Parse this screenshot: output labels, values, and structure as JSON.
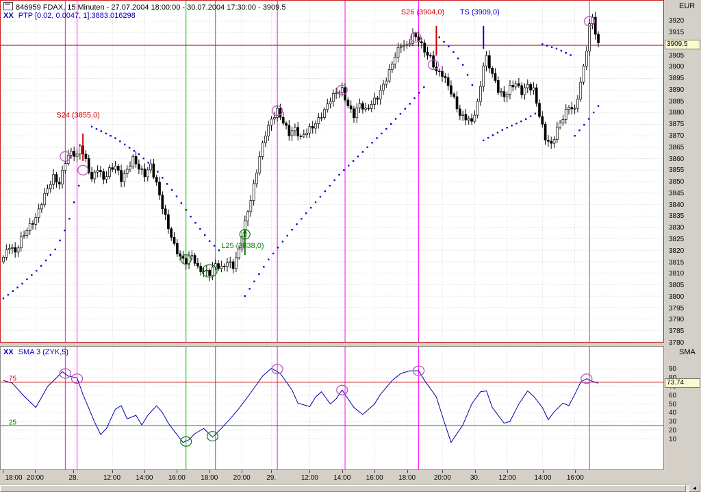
{
  "window": {
    "title": "846959  FDAX, 15 Minuten - 27.07.2004 18:00:00 - 30.07.2004 17:30:00 - 3909.5"
  },
  "main_panel": {
    "indicator_prefix": "XX",
    "indicator_label": "PTP [0.02, 0.0047, 1]:3883.016298",
    "axis_title": "EUR",
    "current_price": "3909.5"
  },
  "lower_panel": {
    "indicator_prefix": "XX",
    "indicator_label": "SMA 3 (ZYK,5)",
    "axis_title": "SMA",
    "current_value": "73.74"
  },
  "scrollbar": {
    "arrow_glyph": "◄"
  },
  "colors": {
    "background": "#d4d0c8",
    "panel_bg": "#ffffff",
    "grid": "#c6c6c6",
    "border_main": "#cc2222",
    "candle": "#000000",
    "sar": "#0000cc",
    "vline_magenta": "#ff00ff",
    "vline_green": "#00b400",
    "circle_magenta": "#bb55bb",
    "circle_green": "#1e7d1e",
    "current_line": "#ff0000",
    "ref_upper": "#cc0000",
    "ref_lower": "#008000",
    "osc_line": "#0000aa",
    "highlight_bg": "#fbfbcf",
    "label_blue": "#0000cc"
  },
  "time_axis": {
    "ticks": [
      {
        "slot": 0,
        "label": "18:00"
      },
      {
        "slot": 11,
        "label": "20:00"
      },
      {
        "slot": 24,
        "label": "28."
      },
      {
        "slot": 37,
        "label": "12:00"
      },
      {
        "slot": 48,
        "label": "14:00"
      },
      {
        "slot": 59,
        "label": "16:00"
      },
      {
        "slot": 70,
        "label": "18:00"
      },
      {
        "slot": 81,
        "label": "20:00"
      },
      {
        "slot": 91,
        "label": "29."
      },
      {
        "slot": 104,
        "label": "12:00"
      },
      {
        "slot": 115,
        "label": "14:00"
      },
      {
        "slot": 126,
        "label": "16:00"
      },
      {
        "slot": 137,
        "label": "18:00"
      },
      {
        "slot": 149,
        "label": "20:00"
      },
      {
        "slot": 160,
        "label": "30."
      },
      {
        "slot": 171,
        "label": "12:00"
      },
      {
        "slot": 183,
        "label": "14:00"
      },
      {
        "slot": 194,
        "label": "16:00"
      }
    ]
  },
  "chart_data": [
    {
      "type": "candlestick",
      "title": "846959 FDAX, 15 Minuten",
      "range": "27.07.2004 18:00:00 - 30.07.2004 17:30:00",
      "last": 3909.5,
      "ylim": [
        3780,
        3929
      ],
      "y_tick_min": 3780,
      "y_tick_max": 3920,
      "y_tick_step": 5,
      "n_slots": 225,
      "last_slot": 202,
      "first_open": 3815,
      "close_anchors": [
        [
          0,
          3817
        ],
        [
          2,
          3822
        ],
        [
          4,
          3819
        ],
        [
          6,
          3825
        ],
        [
          8,
          3829
        ],
        [
          11,
          3834
        ],
        [
          13,
          3841
        ],
        [
          15,
          3847
        ],
        [
          17,
          3852
        ],
        [
          19,
          3849
        ],
        [
          21,
          3859
        ],
        [
          23,
          3863
        ],
        [
          25,
          3861
        ],
        [
          26,
          3866
        ],
        [
          28,
          3859
        ],
        [
          30,
          3851
        ],
        [
          32,
          3856
        ],
        [
          34,
          3851
        ],
        [
          36,
          3855
        ],
        [
          38,
          3857
        ],
        [
          40,
          3851
        ],
        [
          42,
          3855
        ],
        [
          44,
          3860
        ],
        [
          46,
          3856
        ],
        [
          48,
          3853
        ],
        [
          50,
          3857
        ],
        [
          52,
          3849
        ],
        [
          54,
          3839
        ],
        [
          56,
          3830
        ],
        [
          58,
          3822
        ],
        [
          60,
          3817
        ],
        [
          62,
          3815
        ],
        [
          64,
          3818
        ],
        [
          66,
          3812
        ],
        [
          68,
          3811
        ],
        [
          70,
          3810
        ],
        [
          72,
          3814
        ],
        [
          74,
          3812
        ],
        [
          76,
          3815
        ],
        [
          78,
          3813
        ],
        [
          80,
          3820
        ],
        [
          81,
          3827
        ],
        [
          83,
          3837
        ],
        [
          85,
          3848
        ],
        [
          87,
          3861
        ],
        [
          89,
          3871
        ],
        [
          91,
          3877
        ],
        [
          93,
          3881
        ],
        [
          95,
          3876
        ],
        [
          97,
          3871
        ],
        [
          99,
          3873
        ],
        [
          101,
          3869
        ],
        [
          103,
          3872
        ],
        [
          105,
          3874
        ],
        [
          107,
          3877
        ],
        [
          109,
          3881
        ],
        [
          111,
          3886
        ],
        [
          113,
          3889
        ],
        [
          115,
          3890
        ],
        [
          117,
          3883
        ],
        [
          119,
          3879
        ],
        [
          121,
          3884
        ],
        [
          123,
          3881
        ],
        [
          125,
          3884
        ],
        [
          127,
          3887
        ],
        [
          129,
          3892
        ],
        [
          131,
          3898
        ],
        [
          133,
          3905
        ],
        [
          135,
          3910
        ],
        [
          137,
          3909
        ],
        [
          139,
          3914
        ],
        [
          141,
          3912
        ],
        [
          143,
          3907
        ],
        [
          145,
          3904
        ],
        [
          147,
          3898
        ],
        [
          149,
          3897
        ],
        [
          151,
          3892
        ],
        [
          153,
          3886
        ],
        [
          155,
          3879
        ],
        [
          157,
          3878
        ],
        [
          159,
          3876
        ],
        [
          161,
          3884
        ],
        [
          162,
          3892
        ],
        [
          163,
          3901
        ],
        [
          164,
          3904
        ],
        [
          166,
          3897
        ],
        [
          168,
          3890
        ],
        [
          170,
          3887
        ],
        [
          172,
          3891
        ],
        [
          174,
          3893
        ],
        [
          176,
          3889
        ],
        [
          178,
          3892
        ],
        [
          180,
          3890
        ],
        [
          182,
          3879
        ],
        [
          184,
          3869
        ],
        [
          186,
          3866
        ],
        [
          188,
          3873
        ],
        [
          190,
          3878
        ],
        [
          192,
          3883
        ],
        [
          194,
          3881
        ],
        [
          196,
          3893
        ],
        [
          197,
          3900
        ],
        [
          198,
          3908
        ],
        [
          199,
          3918
        ],
        [
          200,
          3922
        ],
        [
          201,
          3915
        ],
        [
          202,
          3909.5
        ]
      ],
      "sar_segments": [
        [
          [
            0,
            3799
          ],
          [
            6,
            3805
          ],
          [
            12,
            3812
          ],
          [
            18,
            3821
          ],
          [
            22,
            3832
          ],
          [
            26,
            3850
          ]
        ],
        [
          [
            30,
            3874
          ],
          [
            38,
            3869
          ],
          [
            46,
            3862
          ],
          [
            52,
            3855
          ],
          [
            58,
            3845
          ],
          [
            64,
            3834
          ],
          [
            70,
            3824
          ],
          [
            74,
            3819
          ]
        ],
        [
          [
            82,
            3800
          ],
          [
            90,
            3816
          ],
          [
            98,
            3829
          ],
          [
            106,
            3841
          ],
          [
            114,
            3853
          ],
          [
            122,
            3863
          ],
          [
            130,
            3873
          ],
          [
            138,
            3884
          ],
          [
            144,
            3893
          ]
        ],
        [
          [
            148,
            3913
          ],
          [
            152,
            3908
          ],
          [
            156,
            3901
          ],
          [
            160,
            3890
          ]
        ],
        [
          [
            163,
            3868
          ],
          [
            170,
            3873
          ],
          [
            177,
            3877
          ],
          [
            181,
            3880
          ]
        ],
        [
          [
            183,
            3910
          ],
          [
            188,
            3908
          ],
          [
            193,
            3905
          ]
        ],
        [
          [
            194,
            3870
          ],
          [
            198,
            3876
          ],
          [
            202,
            3883
          ]
        ]
      ],
      "signals": [
        {
          "id": "S24",
          "text": "S24 (3855,0)",
          "price": 3855,
          "color": "#cc0000",
          "slot": 27,
          "mark_from": 3871,
          "mark_to": 3859,
          "label_slot": 18,
          "label_price": 3878
        },
        {
          "id": "L25",
          "text": "L25 (3838,0)",
          "price": 3838,
          "color": "#008000",
          "slot": 82,
          "mark_from": 3818,
          "mark_to": 3829,
          "arrow": "up",
          "label_slot": 74,
          "label_price": 3821
        },
        {
          "id": "S26",
          "text": "S26 (3904,0)",
          "price": 3904,
          "color": "#cc0000",
          "slot": 147,
          "mark_from": 3918,
          "mark_to": 3905,
          "label_slot": 135,
          "label_price": 3923
        },
        {
          "id": "TS",
          "text": "TS (3909,0)",
          "price": 3909,
          "color": "#0000cc",
          "slot": 163,
          "mark_from": 3918,
          "mark_to": 3908,
          "label_slot": 155,
          "label_price": 3923
        }
      ],
      "circles": [
        {
          "slot": 21,
          "price": 3861,
          "color": "magenta"
        },
        {
          "slot": 27,
          "price": 3855,
          "color": "magenta"
        },
        {
          "slot": 62,
          "price": 3816,
          "color": "green"
        },
        {
          "slot": 70,
          "price": 3811,
          "color": "green",
          "large": true
        },
        {
          "slot": 82,
          "price": 3827,
          "color": "green"
        },
        {
          "slot": 93,
          "price": 3881,
          "color": "magenta"
        },
        {
          "slot": 115,
          "price": 3890,
          "color": "magenta"
        },
        {
          "slot": 140,
          "price": 3913,
          "color": "magenta"
        },
        {
          "slot": 146,
          "price": 3901,
          "color": "magenta"
        },
        {
          "slot": 199,
          "price": 3920,
          "color": "magenta"
        }
      ],
      "vlines": [
        {
          "slot": 21,
          "color": "magenta"
        },
        {
          "slot": 25,
          "color": "magenta"
        },
        {
          "slot": 62,
          "color": "green"
        },
        {
          "slot": 72,
          "color": "green"
        },
        {
          "slot": 93,
          "color": "magenta"
        },
        {
          "slot": 116,
          "color": "magenta"
        },
        {
          "slot": 141,
          "color": "magenta"
        },
        {
          "slot": 199,
          "color": "magenta"
        }
      ]
    },
    {
      "type": "line",
      "title": "SMA 3 (ZYK,5)",
      "last": 73.74,
      "ylim": [
        0,
        100
      ],
      "y_ticks": [
        90,
        80,
        70,
        60,
        50,
        40,
        30,
        20,
        10
      ],
      "ref_lines": [
        {
          "value": 75,
          "label": "75",
          "color": "#cc0000"
        },
        {
          "value": 25,
          "label": "25",
          "color": "#008000"
        }
      ],
      "points": [
        [
          0,
          77
        ],
        [
          3,
          74
        ],
        [
          7,
          59
        ],
        [
          11,
          46
        ],
        [
          15,
          70
        ],
        [
          18,
          80
        ],
        [
          20,
          87
        ],
        [
          22,
          82
        ],
        [
          25,
          80
        ],
        [
          27,
          61
        ],
        [
          31,
          29
        ],
        [
          33,
          15
        ],
        [
          35,
          22
        ],
        [
          38,
          44
        ],
        [
          40,
          48
        ],
        [
          42,
          33
        ],
        [
          45,
          37
        ],
        [
          47,
          26
        ],
        [
          49,
          37
        ],
        [
          52,
          48
        ],
        [
          54,
          40
        ],
        [
          56,
          28
        ],
        [
          58,
          19
        ],
        [
          61,
          6
        ],
        [
          63,
          9
        ],
        [
          65,
          16
        ],
        [
          68,
          22
        ],
        [
          71,
          12
        ],
        [
          74,
          22
        ],
        [
          77,
          33
        ],
        [
          80,
          45
        ],
        [
          84,
          63
        ],
        [
          88,
          82
        ],
        [
          91,
          91
        ],
        [
          94,
          85
        ],
        [
          98,
          66
        ],
        [
          100,
          51
        ],
        [
          104,
          47
        ],
        [
          106,
          58
        ],
        [
          108,
          64
        ],
        [
          111,
          50
        ],
        [
          113,
          56
        ],
        [
          115,
          66
        ],
        [
          119,
          46
        ],
        [
          122,
          38
        ],
        [
          126,
          50
        ],
        [
          128,
          61
        ],
        [
          132,
          77
        ],
        [
          135,
          85
        ],
        [
          138,
          88
        ],
        [
          141,
          88
        ],
        [
          143,
          77
        ],
        [
          147,
          58
        ],
        [
          150,
          26
        ],
        [
          152,
          6
        ],
        [
          156,
          26
        ],
        [
          159,
          50
        ],
        [
          162,
          64
        ],
        [
          164,
          65
        ],
        [
          166,
          46
        ],
        [
          170,
          28
        ],
        [
          172,
          30
        ],
        [
          175,
          50
        ],
        [
          178,
          65
        ],
        [
          180,
          59
        ],
        [
          183,
          46
        ],
        [
          185,
          32
        ],
        [
          187,
          41
        ],
        [
          190,
          51
        ],
        [
          192,
          48
        ],
        [
          194,
          61
        ],
        [
          196,
          75
        ],
        [
          198,
          79
        ],
        [
          200,
          76
        ],
        [
          202,
          73.74
        ]
      ],
      "circles": [
        {
          "slot": 21,
          "value": 85,
          "color": "magenta"
        },
        {
          "slot": 25,
          "value": 79,
          "color": "magenta"
        },
        {
          "slot": 62,
          "value": 7,
          "color": "green"
        },
        {
          "slot": 71,
          "value": 13,
          "color": "green"
        },
        {
          "slot": 93,
          "value": 90,
          "color": "magenta"
        },
        {
          "slot": 115,
          "value": 66,
          "color": "magenta"
        },
        {
          "slot": 141,
          "value": 88,
          "color": "magenta"
        },
        {
          "slot": 198,
          "value": 79,
          "color": "magenta"
        }
      ]
    }
  ]
}
